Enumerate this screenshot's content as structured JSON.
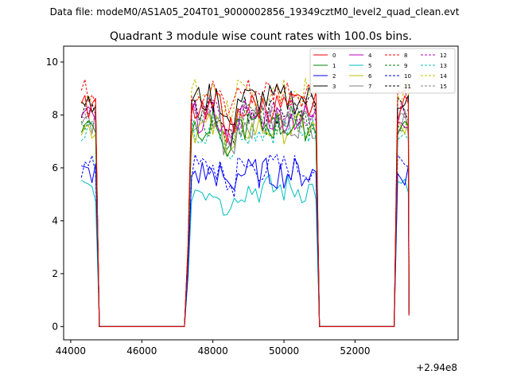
{
  "chart_data": {
    "type": "line",
    "suptitle": "Data file: modeM0/AS1A05_204T01_9000002856_19349cztM0_level2_quad_clean.evt",
    "title": "Quadrant 3 module wise count rates with 100.0s bins.",
    "xlabel": "",
    "ylabel": "",
    "x_offset_label": "+2.94e8",
    "xlim": [
      43800,
      54900
    ],
    "ylim": [
      -0.5,
      10.6
    ],
    "x_ticks": [
      44000,
      46000,
      48000,
      50000,
      52000
    ],
    "x_tick_labels": [
      "44000",
      "46000",
      "48000",
      "50000",
      "52000"
    ],
    "y_ticks": [
      0,
      2,
      4,
      6,
      8,
      10
    ],
    "y_tick_labels": [
      "0",
      "2",
      "4",
      "6",
      "8",
      "10"
    ],
    "bin_seconds": 100,
    "segments": [
      {
        "start": 44300,
        "end": 44700
      },
      {
        "start": 47300,
        "end": 50900
      },
      {
        "start": 53200,
        "end": 53500
      }
    ],
    "gaps": [
      {
        "from": 44800,
        "to": 47200
      },
      {
        "from": 51000,
        "to": 53100
      }
    ],
    "legend": {
      "position": "upper right",
      "ncol": 4
    },
    "series": [
      {
        "name": "0",
        "color": "#ff0000",
        "dashed": false,
        "level": 8.3
      },
      {
        "name": "1",
        "color": "#008000",
        "dashed": false,
        "level": 7.6
      },
      {
        "name": "2",
        "color": "#0000ff",
        "dashed": false,
        "level": 5.8
      },
      {
        "name": "3",
        "color": "#000000",
        "dashed": false,
        "level": 8.6
      },
      {
        "name": "4",
        "color": "#bf00bf",
        "dashed": false,
        "level": 7.9
      },
      {
        "name": "5",
        "color": "#00bfbf",
        "dashed": false,
        "level": 5.2
      },
      {
        "name": "6",
        "color": "#bfbf00",
        "dashed": false,
        "level": 7.5
      },
      {
        "name": "7",
        "color": "#808080",
        "dashed": false,
        "level": 7.7
      },
      {
        "name": "8",
        "color": "#ff0000",
        "dashed": true,
        "level": 8.9
      },
      {
        "name": "9",
        "color": "#008000",
        "dashed": true,
        "level": 7.8
      },
      {
        "name": "10",
        "color": "#0000ff",
        "dashed": true,
        "level": 6.0
      },
      {
        "name": "11",
        "color": "#000000",
        "dashed": true,
        "level": 8.2
      },
      {
        "name": "12",
        "color": "#bf00bf",
        "dashed": true,
        "level": 8.0
      },
      {
        "name": "13",
        "color": "#00bfbf",
        "dashed": true,
        "level": 7.5
      },
      {
        "name": "14",
        "color": "#bfbf00",
        "dashed": true,
        "level": 8.8
      },
      {
        "name": "15",
        "color": "#808080",
        "dashed": true,
        "level": 8.0
      }
    ]
  }
}
